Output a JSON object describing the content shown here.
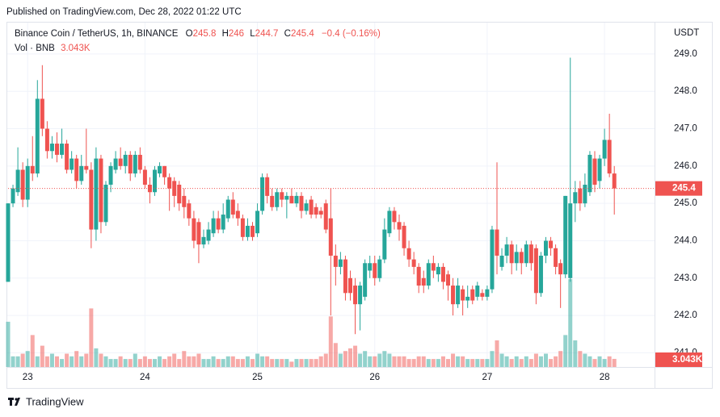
{
  "header": {
    "published": "Published on TradingView.com, Dec 28, 2022 01:22 UTC",
    "brand": "TradingView"
  },
  "chart_data": {
    "type": "candlestick",
    "symbol": "Binance Coin / TetherUS, 1h, BINANCE",
    "legend_labels": {
      "open": "O",
      "high": "H",
      "low": "L",
      "close": "C"
    },
    "change_label": "−0.4 (−0.16%)",
    "volume_title": "Vol · BNB",
    "volume_last_label": "3.043K",
    "y_axis_label": "USDT",
    "up_color": "#26a69a",
    "down_color": "#ef5350",
    "ylim": [
      240.62,
      249.84
    ],
    "yticks": [
      {
        "value": 241,
        "label": "241.0"
      },
      {
        "value": 242,
        "label": "242.0"
      },
      {
        "value": 243,
        "label": "243.0"
      },
      {
        "value": 244,
        "label": "244.0"
      },
      {
        "value": 245,
        "label": "245.0"
      },
      {
        "value": 246,
        "label": "246.0"
      },
      {
        "value": 247,
        "label": "247.0"
      },
      {
        "value": 248,
        "label": "248.0"
      },
      {
        "value": 249,
        "label": "249.0"
      }
    ],
    "xticks": [
      {
        "value": 4,
        "label": "23"
      },
      {
        "value": 28,
        "label": "24"
      },
      {
        "value": 51,
        "label": "25"
      },
      {
        "value": 75,
        "label": "26"
      },
      {
        "value": 98,
        "label": "27"
      },
      {
        "value": 122,
        "label": "28"
      }
    ],
    "grid": true,
    "open": [
      242.9,
      245.0,
      245.3,
      245.9,
      245.1,
      246.0,
      245.8,
      247.8,
      247.0,
      246.4,
      246.6,
      246.3,
      246.6,
      245.9,
      246.2,
      245.6,
      246.0,
      245.9,
      244.3,
      246.2,
      244.5,
      245.5,
      245.9,
      246.2,
      246.0,
      246.3,
      245.8,
      246.3,
      245.9,
      245.5,
      245.3,
      245.8,
      246.0,
      245.7,
      245.6,
      245.5,
      245.2,
      245.0,
      244.6,
      244.5,
      243.9,
      244.0,
      244.2,
      244.6,
      244.3,
      244.6,
      245.1,
      244.8,
      244.6,
      244.1,
      244.4,
      244.2,
      244.8,
      245.7,
      245.2,
      244.9,
      245.3,
      245.1,
      245.2,
      245.0,
      245.2,
      244.8,
      245.1,
      244.9,
      244.8,
      245.0,
      244.6,
      243.6,
      243.3,
      243.5,
      243.0,
      242.8,
      242.3,
      242.5,
      243.2,
      243.4,
      243.0,
      243.5,
      244.2,
      244.8,
      244.5,
      244.4,
      243.8,
      243.5,
      243.3,
      243.0,
      242.8,
      243.4,
      243.1,
      243.3,
      243.1,
      242.8,
      242.3,
      242.7,
      242.4,
      242.7,
      242.5,
      242.6,
      242.5,
      242.7,
      244.3,
      243.3,
      243.6,
      243.9,
      243.4,
      243.7,
      243.4,
      243.9,
      243.8,
      242.6,
      243.6,
      244.0,
      243.8,
      243.4,
      243.1,
      243.0,
      245.0,
      245.4,
      245.0,
      245.3,
      246.2,
      245.6,
      246.2,
      246.7,
      245.8
    ],
    "high": [
      245.0,
      245.5,
      246.5,
      246.1,
      246.2,
      246.8,
      248.3,
      248.7,
      247.2,
      246.8,
      246.9,
      247.0,
      246.7,
      246.4,
      246.3,
      246.3,
      247.0,
      246.1,
      246.5,
      246.3,
      245.6,
      246.1,
      246.4,
      246.5,
      246.4,
      246.4,
      246.4,
      246.5,
      246.0,
      245.7,
      246.0,
      246.1,
      246.0,
      245.8,
      245.7,
      245.6,
      245.4,
      245.1,
      244.8,
      244.6,
      244.3,
      244.5,
      244.8,
      244.8,
      245.0,
      245.2,
      245.3,
      245.0,
      244.7,
      244.6,
      244.5,
      245.0,
      245.8,
      245.8,
      245.4,
      245.4,
      245.4,
      245.3,
      245.4,
      245.3,
      245.3,
      245.1,
      245.2,
      245.0,
      244.9,
      245.1,
      245.4,
      243.9,
      243.7,
      243.6,
      243.2,
      243.0,
      242.9,
      243.5,
      243.6,
      243.6,
      243.6,
      244.6,
      244.9,
      244.9,
      244.7,
      244.5,
      244.0,
      243.7,
      243.4,
      243.2,
      243.5,
      243.6,
      243.4,
      243.4,
      243.2,
      243.0,
      243.0,
      242.8,
      242.8,
      242.8,
      242.9,
      242.7,
      242.8,
      244.4,
      246.1,
      243.8,
      244.1,
      244.0,
      243.9,
      243.8,
      244.0,
      244.0,
      243.9,
      243.7,
      244.1,
      244.1,
      243.9,
      243.5,
      245.2,
      248.9,
      245.6,
      245.6,
      245.8,
      246.4,
      246.4,
      246.3,
      247.0,
      247.4,
      246.0
    ],
    "low": [
      242.9,
      244.9,
      245.2,
      244.9,
      244.9,
      245.6,
      245.7,
      246.8,
      246.2,
      246.2,
      246.1,
      246.2,
      245.8,
      245.8,
      245.4,
      245.5,
      245.8,
      243.8,
      244.0,
      244.2,
      244.4,
      245.3,
      245.8,
      245.9,
      245.8,
      245.6,
      245.7,
      245.8,
      245.4,
      245.0,
      245.2,
      245.7,
      245.5,
      244.8,
      244.9,
      244.8,
      244.6,
      244.4,
      243.8,
      243.4,
      243.8,
      243.9,
      244.1,
      244.2,
      244.2,
      244.5,
      244.6,
      244.4,
      244.0,
      244.0,
      244.0,
      244.1,
      244.7,
      245.0,
      244.8,
      244.8,
      244.9,
      244.6,
      245.0,
      244.9,
      244.6,
      244.7,
      244.6,
      244.6,
      244.6,
      244.2,
      242.0,
      242.8,
      243.1,
      242.4,
      242.4,
      241.5,
      241.6,
      242.4,
      243.0,
      242.8,
      242.9,
      243.4,
      244.1,
      244.3,
      244.0,
      243.6,
      243.3,
      243.1,
      242.6,
      242.6,
      242.7,
      243.0,
      242.9,
      242.7,
      242.4,
      242.0,
      242.2,
      242.0,
      242.2,
      242.3,
      242.4,
      242.4,
      242.4,
      242.6,
      243.1,
      243.2,
      243.4,
      243.1,
      243.2,
      243.1,
      243.3,
      243.2,
      242.3,
      242.5,
      243.4,
      243.6,
      243.1,
      242.2,
      243.0,
      242.9,
      244.5,
      244.8,
      244.9,
      245.2,
      245.3,
      245.4,
      246.0,
      245.7,
      244.7
    ],
    "close": [
      245.0,
      245.4,
      245.9,
      245.1,
      246.0,
      245.8,
      247.8,
      247.0,
      246.4,
      246.6,
      246.3,
      246.6,
      245.9,
      246.2,
      245.6,
      246.0,
      245.9,
      244.3,
      246.2,
      244.5,
      245.5,
      246.0,
      246.2,
      246.0,
      246.3,
      245.8,
      246.3,
      245.9,
      245.5,
      245.3,
      245.9,
      246.0,
      245.7,
      245.4,
      245.2,
      245.0,
      244.9,
      244.6,
      244.0,
      243.9,
      244.1,
      244.3,
      244.6,
      244.3,
      244.7,
      245.1,
      244.7,
      244.6,
      244.1,
      244.4,
      244.1,
      244.8,
      245.7,
      245.2,
      244.9,
      245.3,
      245.1,
      245.2,
      245.0,
      245.2,
      244.8,
      245.0,
      244.7,
      244.7,
      244.7,
      244.3,
      243.6,
      243.3,
      243.5,
      242.6,
      242.6,
      242.3,
      242.8,
      243.4,
      243.4,
      243.0,
      243.5,
      244.3,
      244.8,
      244.5,
      244.3,
      243.8,
      243.5,
      243.3,
      242.8,
      242.8,
      243.4,
      243.2,
      243.3,
      242.9,
      242.8,
      242.3,
      242.8,
      242.4,
      242.5,
      242.4,
      242.8,
      242.5,
      242.7,
      244.3,
      243.6,
      243.6,
      243.9,
      243.4,
      243.7,
      243.4,
      243.9,
      243.4,
      242.6,
      243.6,
      244.0,
      243.8,
      243.3,
      243.1,
      245.2,
      245.0,
      245.3,
      245.0,
      245.5,
      246.3,
      245.5,
      246.2,
      246.7,
      245.8,
      245.4
    ],
    "volume": [
      17,
      4,
      4,
      5,
      6,
      12,
      4,
      8,
      4,
      5,
      4,
      3,
      5,
      4,
      6,
      4,
      5,
      22,
      7,
      5,
      4,
      3,
      3,
      4,
      3,
      3,
      5,
      3,
      4,
      3,
      3,
      4,
      3,
      4,
      5,
      3,
      6,
      4,
      4,
      5,
      3,
      3,
      4,
      3,
      3,
      4,
      4,
      3,
      3,
      4,
      3,
      5,
      4,
      4,
      3,
      3,
      3,
      3,
      2,
      3,
      3,
      3,
      3,
      3,
      4,
      5,
      19,
      9,
      5,
      6,
      7,
      8,
      5,
      6,
      4,
      4,
      5,
      6,
      5,
      4,
      4,
      4,
      3,
      3,
      4,
      4,
      3,
      3,
      3,
      4,
      3,
      5,
      4,
      4,
      3,
      3,
      3,
      3,
      3,
      6,
      10,
      5,
      4,
      3,
      4,
      3,
      4,
      3,
      5,
      4,
      5,
      3,
      4,
      6,
      12,
      33,
      10,
      6,
      5,
      4,
      3,
      4,
      3,
      4,
      3.043
    ]
  }
}
